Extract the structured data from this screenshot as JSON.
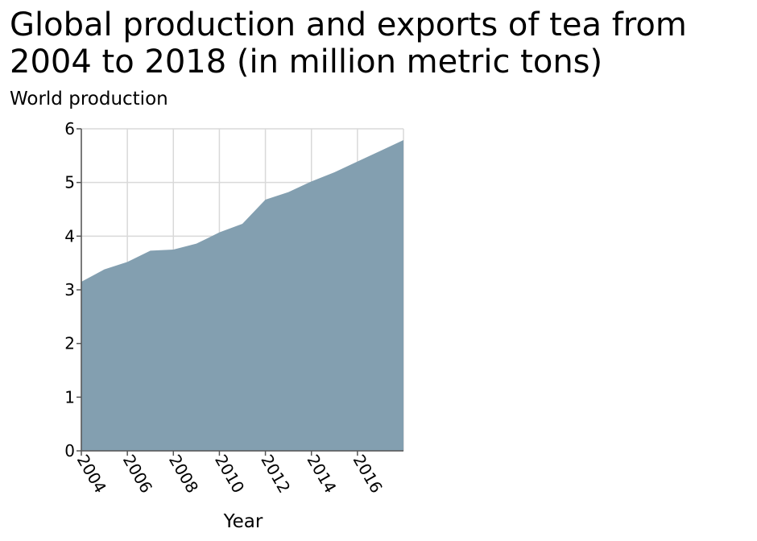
{
  "chart_data": {
    "type": "area",
    "title": "Global production and exports of tea from\n2004 to 2018 (in million metric tons)",
    "ylabel": "World production",
    "xlabel": "Year",
    "x": [
      2004,
      2005,
      2006,
      2007,
      2008,
      2009,
      2010,
      2011,
      2012,
      2013,
      2014,
      2015,
      2016,
      2017,
      2018
    ],
    "series": [
      {
        "values": [
          3.15,
          3.38,
          3.52,
          3.73,
          3.75,
          3.86,
          4.07,
          4.23,
          4.68,
          4.82,
          5.02,
          5.19,
          5.39,
          5.59,
          5.79
        ]
      }
    ],
    "xlim": [
      2004,
      2018
    ],
    "ylim": [
      0,
      6
    ],
    "x_ticks": [
      "2004",
      "2006",
      "2008",
      "2010",
      "2012",
      "2014",
      "2016"
    ],
    "y_ticks": [
      "0",
      "1",
      "2",
      "3",
      "4",
      "5",
      "6"
    ],
    "grid": true,
    "fill_color": "#839fb0",
    "grid_color": "#d9d9d9"
  }
}
